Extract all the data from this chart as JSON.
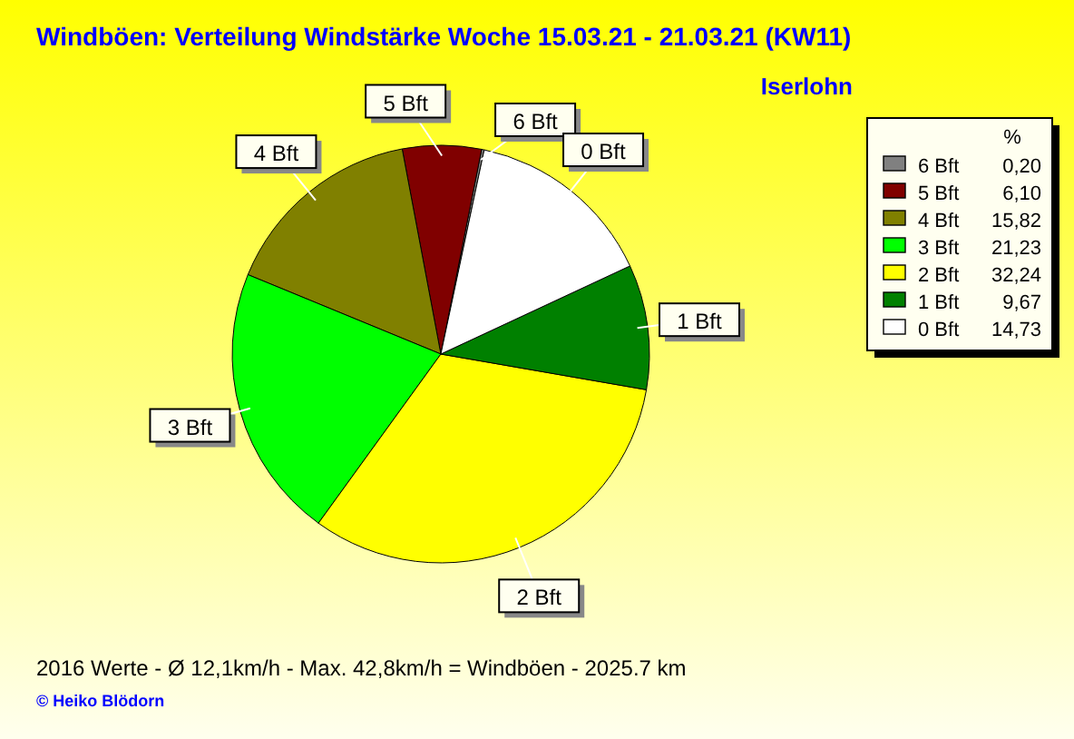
{
  "chart_data": {
    "type": "pie",
    "title": "Windböen: Verteilung Windstärke  Woche 15.03.21 - 21.03.21 (KW11)",
    "subtitle": "Iserlohn",
    "legend_title": "%",
    "categories": [
      "6 Bft",
      "5 Bft",
      "4 Bft",
      "3 Bft",
      "2 Bft",
      "1 Bft",
      "0 Bft"
    ],
    "values": [
      0.2,
      6.1,
      15.82,
      21.23,
      32.24,
      9.67,
      14.73
    ],
    "value_labels": [
      "0,20",
      "6,10",
      "15,82",
      "21,23",
      "32,24",
      "9,67",
      "14,73"
    ],
    "colors": [
      "#808080",
      "#800000",
      "#808000",
      "#00ff00",
      "#ffff00",
      "#008000",
      "#ffffff"
    ],
    "legend": "right",
    "annotations": [
      "2016 Werte   -   Ø 12,1km/h  -  Max. 42,8km/h = Windböen   -   2025.7 km",
      "© Heiko Blödorn"
    ]
  }
}
